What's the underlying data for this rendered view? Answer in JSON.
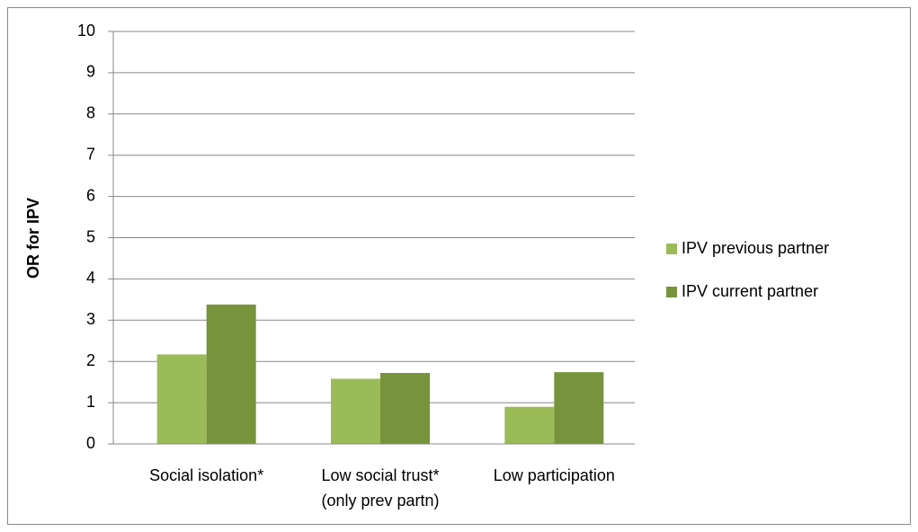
{
  "chart_data": {
    "type": "bar",
    "y_axis_label": "OR for IPV",
    "categories": [
      "Social isolation*",
      "Low social trust*\n(only prev partn)",
      "Low participation"
    ],
    "series": [
      {
        "name": "IPV previous partner",
        "color": "#9bbb59",
        "values": [
          2.17,
          1.58,
          0.9
        ]
      },
      {
        "name": "IPV current partner",
        "color": "#77933c",
        "values": [
          3.38,
          1.72,
          1.74
        ]
      }
    ],
    "ylim": [
      0,
      10
    ],
    "yticks": [
      0,
      1,
      2,
      3,
      4,
      5,
      6,
      7,
      8,
      9,
      10
    ],
    "grid": true,
    "legend": "right"
  }
}
